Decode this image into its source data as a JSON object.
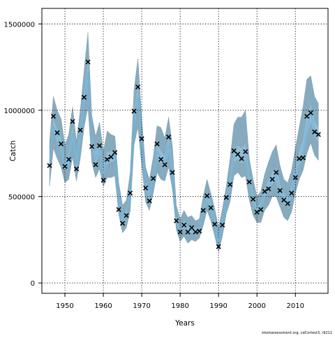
{
  "chart_data": {
    "type": "line",
    "title": "",
    "xlabel": "Years",
    "ylabel": "Catch",
    "xlim": [
      1944,
      2018.5
    ],
    "ylim": [
      -60000,
      1590000
    ],
    "x_ticks": [
      1950,
      1960,
      1970,
      1980,
      1990,
      2000,
      2010
    ],
    "y_ticks": [
      0,
      500000,
      1000000,
      1500000
    ],
    "x_tick_labels": [
      "1950",
      "1960",
      "1970",
      "1980",
      "1990",
      "2000",
      "2010"
    ],
    "y_tick_labels": [
      "0",
      "500000",
      "1000000",
      "1500000"
    ],
    "grid": true,
    "legend": "none",
    "credit": "stockassessment.org, cdCortest3, r9211",
    "colors": {
      "band_outer": "#5f8fa8",
      "band_inner": "#9fcbe6",
      "line": "#5fb6e6",
      "marker": "#000000",
      "grid": "#000000"
    },
    "x": [
      1946,
      1947,
      1948,
      1949,
      1950,
      1951,
      1952,
      1953,
      1954,
      1955,
      1956,
      1957,
      1958,
      1959,
      1960,
      1961,
      1962,
      1963,
      1964,
      1965,
      1966,
      1967,
      1968,
      1969,
      1970,
      1971,
      1972,
      1973,
      1974,
      1975,
      1976,
      1977,
      1978,
      1979,
      1980,
      1981,
      1982,
      1983,
      1984,
      1985,
      1986,
      1987,
      1988,
      1989,
      1990,
      1991,
      1992,
      1993,
      1994,
      1995,
      1996,
      1997,
      1998,
      1999,
      2000,
      2001,
      2002,
      2003,
      2004,
      2005,
      2006,
      2007,
      2008,
      2009,
      2010,
      2011,
      2012,
      2013,
      2014,
      2015,
      2016
    ],
    "series": [
      {
        "kind": "observed",
        "marker": "x",
        "values": [
          680000,
          965000,
          870000,
          805000,
          675000,
          715000,
          935000,
          660000,
          885000,
          1075000,
          1280000,
          790000,
          685000,
          795000,
          595000,
          715000,
          730000,
          755000,
          425000,
          345000,
          390000,
          520000,
          995000,
          1135000,
          835000,
          550000,
          475000,
          605000,
          805000,
          715000,
          685000,
          845000,
          640000,
          360000,
          295000,
          335000,
          295000,
          320000,
          295000,
          300000,
          420000,
          505000,
          435000,
          340000,
          210000,
          335000,
          495000,
          570000,
          765000,
          745000,
          720000,
          760000,
          585000,
          485000,
          410000,
          425000,
          530000,
          545000,
          600000,
          640000,
          535000,
          480000,
          460000,
          520000,
          610000,
          720000,
          725000,
          965000,
          985000,
          875000,
          860000
        ]
      },
      {
        "kind": "estimate",
        "values": [
          700000,
          910000,
          850000,
          790000,
          680000,
          720000,
          870000,
          690000,
          850000,
          1050000,
          1220000,
          820000,
          720000,
          780000,
          640000,
          720000,
          730000,
          740000,
          470000,
          360000,
          400000,
          520000,
          950000,
          1080000,
          800000,
          560000,
          500000,
          610000,
          760000,
          720000,
          700000,
          800000,
          640000,
          370000,
          300000,
          340000,
          300000,
          310000,
          300000,
          310000,
          420000,
          500000,
          440000,
          340000,
          240000,
          340000,
          480000,
          580000,
          730000,
          740000,
          720000,
          740000,
          590000,
          490000,
          420000,
          440000,
          520000,
          560000,
          600000,
          620000,
          540000,
          490000,
          470000,
          520000,
          620000,
          710000,
          760000,
          900000,
          980000,
          890000,
          850000
        ]
      },
      {
        "kind": "interval",
        "lower": [
          560000,
          780000,
          720000,
          670000,
          580000,
          600000,
          730000,
          590000,
          720000,
          900000,
          1020000,
          700000,
          610000,
          660000,
          560000,
          610000,
          610000,
          620000,
          400000,
          290000,
          320000,
          420000,
          800000,
          900000,
          680000,
          470000,
          420000,
          520000,
          640000,
          600000,
          590000,
          670000,
          540000,
          310000,
          240000,
          270000,
          230000,
          250000,
          240000,
          260000,
          330000,
          420000,
          360000,
          270000,
          180000,
          270000,
          400000,
          470000,
          620000,
          640000,
          610000,
          620000,
          480000,
          390000,
          350000,
          350000,
          420000,
          450000,
          500000,
          500000,
          440000,
          380000,
          360000,
          410000,
          520000,
          600000,
          650000,
          750000,
          810000,
          740000,
          710000
        ],
        "upper": [
          820000,
          1080000,
          1000000,
          950000,
          800000,
          860000,
          1020000,
          820000,
          1000000,
          1230000,
          1450000,
          970000,
          850000,
          930000,
          760000,
          880000,
          860000,
          850000,
          580000,
          450000,
          480000,
          640000,
          1120000,
          1300000,
          950000,
          670000,
          600000,
          730000,
          910000,
          900000,
          840000,
          960000,
          790000,
          450000,
          370000,
          420000,
          380000,
          390000,
          360000,
          370000,
          500000,
          600000,
          520000,
          430000,
          320000,
          430000,
          560000,
          720000,
          920000,
          960000,
          960000,
          1000000,
          720000,
          600000,
          500000,
          530000,
          630000,
          700000,
          760000,
          800000,
          680000,
          600000,
          580000,
          650000,
          780000,
          900000,
          1020000,
          1180000,
          1200000,
          1080000,
          1040000
        ]
      }
    ]
  }
}
